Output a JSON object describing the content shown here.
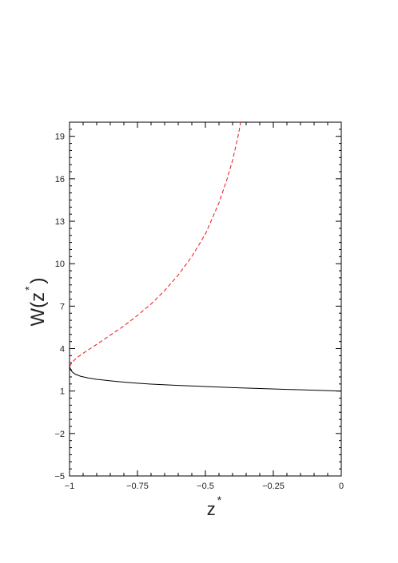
{
  "chart_data": {
    "type": "line",
    "xlabel": "z",
    "xlabel_sup": "*",
    "ylabel": "W(z",
    "ylabel_sup": "*",
    "ylabel_close": ")",
    "xlim": [
      -1,
      0
    ],
    "ylim": [
      -5,
      20
    ],
    "x_ticks": [
      -1,
      -0.75,
      -0.5,
      -0.25,
      0
    ],
    "x_tick_labels": [
      "−1",
      "−0.75",
      "−0.5",
      "−0.25",
      "0"
    ],
    "y_ticks": [
      -5,
      -2,
      1,
      4,
      7,
      10,
      13,
      16,
      19
    ],
    "y_tick_labels": [
      "−5",
      "−2",
      "1",
      "4",
      "7",
      "10",
      "13",
      "16",
      "19"
    ],
    "grid": false,
    "legend": "none",
    "series": [
      {
        "style": "solid",
        "color": "#000000",
        "x": [
          -1.0,
          -0.995,
          -0.99,
          -0.98,
          -0.96,
          -0.93,
          -0.9,
          -0.85,
          -0.8,
          -0.75,
          -0.7,
          -0.6,
          -0.5,
          -0.4,
          -0.3,
          -0.2,
          -0.1,
          -0.05,
          0.0
        ],
        "y": [
          2.72,
          2.5,
          2.35,
          2.2,
          2.05,
          1.92,
          1.83,
          1.72,
          1.63,
          1.55,
          1.49,
          1.4,
          1.32,
          1.24,
          1.18,
          1.12,
          1.06,
          1.03,
          1.0
        ]
      },
      {
        "style": "dashed",
        "color": "#e8141c",
        "x": [
          -1.0,
          -0.99,
          -0.97,
          -0.94,
          -0.9,
          -0.85,
          -0.8,
          -0.75,
          -0.7,
          -0.65,
          -0.6,
          -0.55,
          -0.5,
          -0.45,
          -0.42,
          -0.4,
          -0.38,
          -0.37
        ],
        "y": [
          2.72,
          3.05,
          3.4,
          3.8,
          4.3,
          4.95,
          5.6,
          6.35,
          7.15,
          8.1,
          9.2,
          10.5,
          12.1,
          14.3,
          16.0,
          17.3,
          19.0,
          20.0
        ]
      }
    ]
  }
}
